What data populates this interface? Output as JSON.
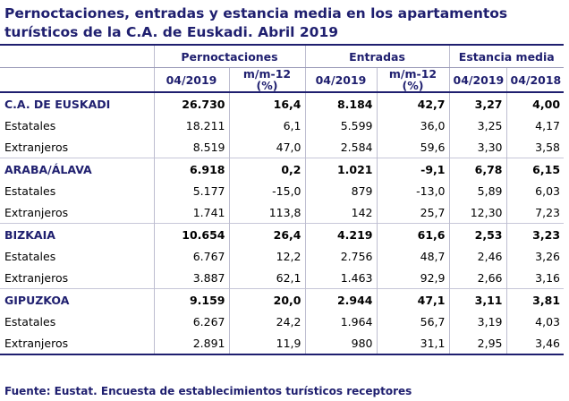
{
  "title": "Pernoctaciones, entradas y estancia media en los apartamentos turísticos de la C.A. de Euskadi. Abril 2019",
  "headers": {
    "pernoctaciones": "Pernoctaciones",
    "entradas": "Entradas",
    "estancia_media": "Estancia media",
    "sub": [
      "04/2019",
      "m/m-12 (%)",
      "04/2019",
      "m/m-12 (%)",
      "04/2019",
      "04/2018"
    ]
  },
  "rows": [
    {
      "label": "C.A. DE EUSKADI",
      "values": [
        "26.730",
        "16,4",
        "8.184",
        "42,7",
        "3,27",
        "4,00"
      ]
    },
    {
      "label": "Estatales",
      "values": [
        "18.211",
        "6,1",
        "5.599",
        "36,0",
        "3,25",
        "4,17"
      ]
    },
    {
      "label": "Extranjeros",
      "values": [
        "8.519",
        "47,0",
        "2.584",
        "59,6",
        "3,30",
        "3,58"
      ]
    },
    {
      "label": "ARABA/ÁLAVA",
      "values": [
        "6.918",
        "0,2",
        "1.021",
        "-9,1",
        "6,78",
        "6,15"
      ]
    },
    {
      "label": "Estatales",
      "values": [
        "5.177",
        "-15,0",
        "879",
        "-13,0",
        "5,89",
        "6,03"
      ]
    },
    {
      "label": "Extranjeros",
      "values": [
        "1.741",
        "113,8",
        "142",
        "25,7",
        "12,30",
        "7,23"
      ]
    },
    {
      "label": "BIZKAIA",
      "values": [
        "10.654",
        "26,4",
        "4.219",
        "61,6",
        "2,53",
        "3,23"
      ]
    },
    {
      "label": "Estatales",
      "values": [
        "6.767",
        "12,2",
        "2.756",
        "48,7",
        "2,46",
        "3,26"
      ]
    },
    {
      "label": "Extranjeros",
      "values": [
        "3.887",
        "62,1",
        "1.463",
        "92,9",
        "2,66",
        "3,16"
      ]
    },
    {
      "label": "GIPUZKOA",
      "values": [
        "9.159",
        "20,0",
        "2.944",
        "47,1",
        "3,11",
        "3,81"
      ]
    },
    {
      "label": "Estatales",
      "values": [
        "6.267",
        "24,2",
        "1.964",
        "56,7",
        "3,19",
        "4,03"
      ]
    },
    {
      "label": "Extranjeros",
      "values": [
        "2.891",
        "11,9",
        "980",
        "31,1",
        "2,95",
        "3,46"
      ]
    }
  ],
  "source": "Fuente: Eustat. Encuesta de establecimientos turísticos receptores"
}
